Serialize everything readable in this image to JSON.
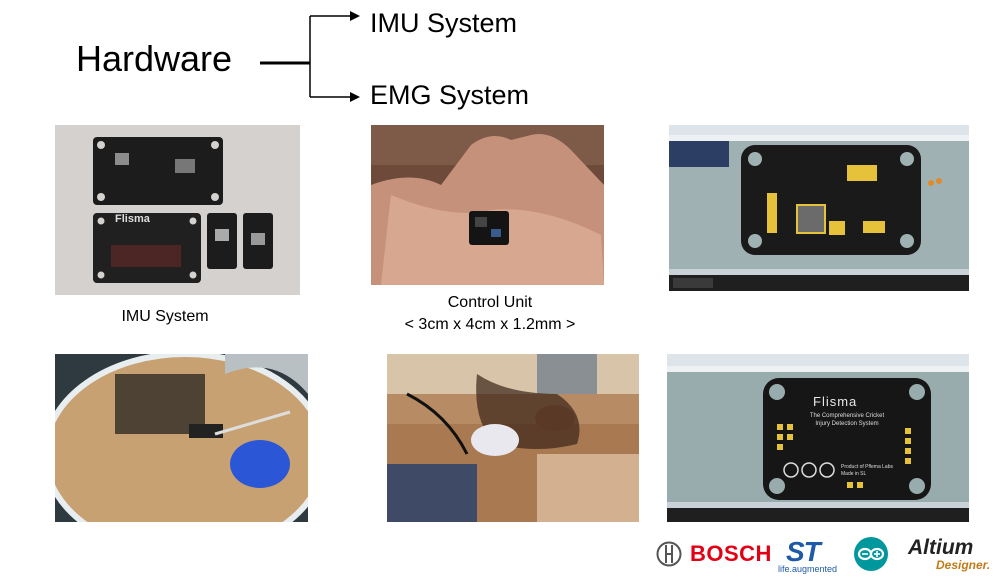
{
  "title": "Hardware",
  "branches": [
    "IMU System",
    "EMG System"
  ],
  "captions": {
    "imu": "IMU System",
    "control_unit": "Control Unit",
    "control_unit_size": "< 3cm x 4cm x 1.2mm >"
  },
  "board": {
    "brand": "Flisma",
    "tagline_1": "The Comprehensive Cricket",
    "tagline_2": "Injury Detection System",
    "made_1": "Product of Pflema Labs",
    "made_2": "Made in SL"
  },
  "logos": {
    "bosch": "BOSCH",
    "st": "ST",
    "st_tag": "life.augmented",
    "altium": "Altium",
    "altium_sub": "Designer."
  },
  "colors": {
    "pcb": "#1c1c1c",
    "altium_bg": "#8fa3a5",
    "bosch_red": "#e20015",
    "st_blue": "#1f5aa6",
    "arduino_teal": "#00979d"
  }
}
